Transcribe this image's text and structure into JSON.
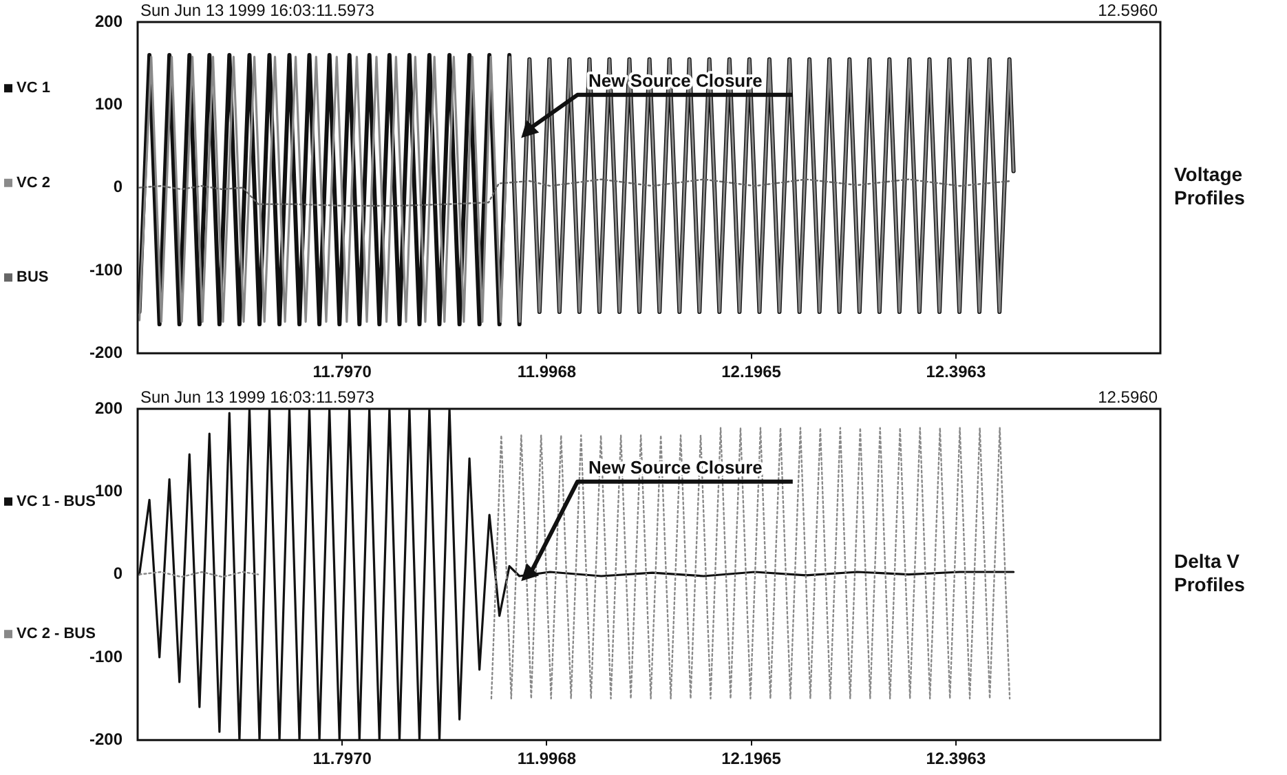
{
  "chart_data": [
    {
      "type": "line",
      "y2label": "Voltage Profiles",
      "subtitle": "Sun Jun 13 1999 16:03:11.5973",
      "xlim": [
        11.5973,
        12.596
      ],
      "xticks": [
        {
          "value": 11.797,
          "label": "11.7970"
        },
        11.9968,
        12.1965,
        12.3963
      ],
      "ylim": [
        -200,
        200
      ],
      "yticks": [
        -200,
        -100,
        0,
        100,
        200
      ],
      "grid": false,
      "legend": "left",
      "annotations": [
        "12.5960",
        "New Source Closure"
      ],
      "series": [
        {
          "name": "VC 1",
          "color": "#111111",
          "line_style": "solid",
          "x": [
            11.599,
            11.6088,
            11.6186,
            11.6283,
            11.6381,
            11.6479,
            11.6577,
            11.6674,
            11.6772,
            11.6869,
            11.6967,
            11.7065,
            11.7163,
            11.726,
            11.7358,
            11.7455,
            11.7553,
            11.765,
            11.7748,
            11.7846,
            11.7944,
            11.8041,
            11.8139,
            11.8236,
            11.8334,
            11.8432,
            11.853,
            11.8627,
            11.8725,
            11.8822,
            11.892,
            11.9018,
            11.9116,
            11.9213,
            11.9311,
            11.9408,
            11.9506,
            11.9603,
            11.9701,
            11.9799,
            11.9897,
            11.9994,
            12.0092,
            12.0189,
            12.0287,
            12.0385,
            12.0483,
            12.058,
            12.0678,
            12.0775,
            12.0873,
            12.0971,
            12.1069,
            12.1166,
            12.1264,
            12.1361,
            12.1459,
            12.1556,
            12.1654,
            12.1752,
            12.185,
            12.1947,
            12.2045,
            12.2142,
            12.224,
            12.2338,
            12.2436,
            12.2533,
            12.2631,
            12.2728,
            12.2826,
            12.2924,
            12.3022,
            12.3119,
            12.3217,
            12.3314,
            12.3412,
            12.3509,
            12.3607,
            12.3705,
            12.3803,
            12.39,
            12.3998,
            12.4095,
            12.4193,
            12.4291,
            12.4389,
            12.4486,
            12.4526
          ],
          "values": [
            -150,
            160,
            -165,
            160,
            -165,
            160,
            -165,
            160,
            -165,
            160,
            -165,
            160,
            -165,
            160,
            -165,
            160,
            -165,
            160,
            -165,
            160,
            -165,
            160,
            -165,
            160,
            -165,
            160,
            -165,
            160,
            -165,
            160,
            -165,
            160,
            -165,
            160,
            -165,
            160,
            -165,
            160,
            -165,
            155,
            -150,
            155,
            -150,
            155,
            -150,
            155,
            -150,
            155,
            -150,
            155,
            -150,
            155,
            -150,
            155,
            -150,
            155,
            -150,
            155,
            -150,
            155,
            -150,
            155,
            -150,
            155,
            -150,
            155,
            -150,
            155,
            -150,
            155,
            -150,
            155,
            -150,
            155,
            -150,
            155,
            -150,
            155,
            -150,
            155,
            -150,
            155,
            -150,
            155,
            -150,
            155,
            -150,
            155,
            20
          ]
        },
        {
          "name": "VC 2",
          "color": "#8a8a8a",
          "line_style": "solid",
          "x": [
            11.599,
            11.6106,
            11.6204,
            11.6306,
            11.6404,
            11.6508,
            11.6606,
            11.6709,
            11.6807,
            11.691,
            11.7008,
            11.7113,
            11.7211,
            11.7314,
            11.7412,
            11.7516,
            11.7614,
            11.7716,
            11.7814,
            11.7917,
            11.8015,
            11.8113,
            11.8211,
            11.8305,
            11.8403,
            11.8496,
            11.8594,
            11.8684,
            11.8782,
            11.8871,
            11.8969,
            11.906,
            11.9158,
            11.9241,
            11.9339,
            11.9422,
            11.952,
            11.9606,
            11.9704,
            11.9799,
            11.9897,
            11.9994,
            12.0092,
            12.0189,
            12.0287,
            12.0385,
            12.0483,
            12.058,
            12.0678,
            12.0775,
            12.0873,
            12.0971,
            12.1069,
            12.1166,
            12.1264,
            12.1361,
            12.1459,
            12.1556,
            12.1654,
            12.1752,
            12.185,
            12.1947,
            12.2045,
            12.2142,
            12.224,
            12.2338,
            12.2436,
            12.2533,
            12.2631,
            12.2728,
            12.2826,
            12.2924,
            12.3022,
            12.3119,
            12.3217,
            12.3314,
            12.3412,
            12.3509,
            12.3607,
            12.3705,
            12.3803,
            12.39,
            12.3998,
            12.4095,
            12.4193,
            12.4291,
            12.4389,
            12.4486,
            12.4526
          ],
          "values": [
            -160,
            158,
            -162,
            158,
            -162,
            158,
            -162,
            158,
            -162,
            158,
            -162,
            158,
            -162,
            158,
            -162,
            158,
            -162,
            158,
            -162,
            158,
            -162,
            158,
            -162,
            158,
            -162,
            158,
            -162,
            158,
            -162,
            158,
            -162,
            158,
            -162,
            158,
            -162,
            158,
            -162,
            158,
            -162,
            155,
            -150,
            155,
            -150,
            155,
            -150,
            155,
            -150,
            155,
            -150,
            155,
            -150,
            155,
            -150,
            155,
            -150,
            155,
            -150,
            155,
            -150,
            155,
            -150,
            155,
            -150,
            155,
            -150,
            155,
            -150,
            155,
            -150,
            155,
            -150,
            155,
            -150,
            155,
            -150,
            155,
            -150,
            155,
            -150,
            155,
            -150,
            155,
            -150,
            155,
            -150,
            155,
            -150,
            155,
            20
          ]
        },
        {
          "name": "BUS",
          "color": "#666666",
          "line_style": "dotted",
          "x": [
            11.599,
            11.62,
            11.64,
            11.66,
            11.68,
            11.7,
            11.715,
            11.75,
            11.8,
            11.85,
            11.9,
            11.94,
            11.95,
            11.98,
            12.0,
            12.05,
            12.1,
            12.15,
            12.2,
            12.25,
            12.3,
            12.35,
            12.4,
            12.45
          ],
          "values": [
            0,
            2,
            -2,
            2,
            -2,
            0,
            -20,
            -20,
            -22,
            -22,
            -20,
            -18,
            5,
            8,
            2,
            10,
            2,
            10,
            2,
            10,
            3,
            10,
            2,
            8
          ]
        }
      ]
    },
    {
      "type": "line",
      "y2label": "Delta V Profiles",
      "subtitle": "Sun Jun 13 1999 16:03:11.5973",
      "xlim": [
        11.5973,
        12.596
      ],
      "xticks": [
        {
          "value": 11.797,
          "label": "11.7970"
        },
        11.9968,
        12.1965,
        12.3963
      ],
      "ylim": [
        -200,
        200
      ],
      "yticks": [
        -200,
        -100,
        0,
        100,
        200
      ],
      "grid": false,
      "legend": "left",
      "annotations": [
        "12.5960",
        "New Source Closure"
      ],
      "series": [
        {
          "name": "VC 1 - BUS",
          "color": "#111111",
          "line_style": "solid",
          "x": [
            11.599,
            11.6088,
            11.6186,
            11.6283,
            11.6381,
            11.6479,
            11.6577,
            11.6674,
            11.6772,
            11.6869,
            11.6967,
            11.7065,
            11.7163,
            11.726,
            11.7358,
            11.7455,
            11.7553,
            11.765,
            11.7748,
            11.7846,
            11.7944,
            11.8041,
            11.8139,
            11.8236,
            11.8334,
            11.8432,
            11.853,
            11.8627,
            11.8725,
            11.8822,
            11.892,
            11.9018,
            11.9116,
            11.9213,
            11.9311,
            11.9408,
            11.9506,
            11.9603,
            11.9701,
            12.0,
            12.05,
            12.1,
            12.15,
            12.2,
            12.25,
            12.3,
            12.35,
            12.4,
            12.4526
          ],
          "values": [
            0,
            90,
            -100,
            115,
            -130,
            145,
            -160,
            170,
            -190,
            195,
            -200,
            200,
            -200,
            200,
            -200,
            200,
            -200,
            200,
            -200,
            200,
            -200,
            200,
            -200,
            200,
            -200,
            200,
            -200,
            200,
            -200,
            200,
            -200,
            200,
            -175,
            140,
            -115,
            72,
            -50,
            10,
            -2,
            3,
            -2,
            2,
            -2,
            3,
            -1,
            3,
            0,
            3,
            3
          ]
        },
        {
          "name": "VC 2 - BUS",
          "color": "#888888",
          "line_style": "dotted",
          "x": [
            11.599,
            11.62,
            11.64,
            11.66,
            11.68,
            11.7,
            11.715,
            11.72,
            11.9427,
            11.9524,
            11.9621,
            11.9719,
            11.9816,
            11.9913,
            12.001,
            12.0108,
            12.0205,
            12.0303,
            12.04,
            12.0497,
            12.0594,
            12.0692,
            12.0789,
            12.0887,
            12.0984,
            12.1082,
            12.1179,
            12.1276,
            12.1373,
            12.1471,
            12.1568,
            12.1666,
            12.1763,
            12.186,
            12.1957,
            12.2055,
            12.2152,
            12.225,
            12.2347,
            12.2445,
            12.2542,
            12.2639,
            12.2736,
            12.2834,
            12.2931,
            12.3029,
            12.3126,
            12.3223,
            12.332,
            12.3418,
            12.3515,
            12.3613,
            12.371,
            12.3808,
            12.3905,
            12.4002,
            12.4099,
            12.4197,
            12.4294,
            12.4392,
            12.4489
          ],
          "values": [
            0,
            3,
            -3,
            3,
            -3,
            3,
            0,
            null,
            -150,
            168,
            -150,
            168,
            -150,
            168,
            -150,
            168,
            -150,
            168,
            -150,
            168,
            -150,
            168,
            -150,
            168,
            -150,
            168,
            -150,
            168,
            -150,
            168,
            -150,
            177,
            -150,
            177,
            -150,
            177,
            -150,
            177,
            -150,
            177,
            -150,
            177,
            -150,
            177,
            -150,
            177,
            -150,
            177,
            -150,
            177,
            -150,
            177,
            -150,
            177,
            -150,
            177,
            -150,
            177,
            -150,
            177,
            -150
          ]
        }
      ]
    }
  ]
}
